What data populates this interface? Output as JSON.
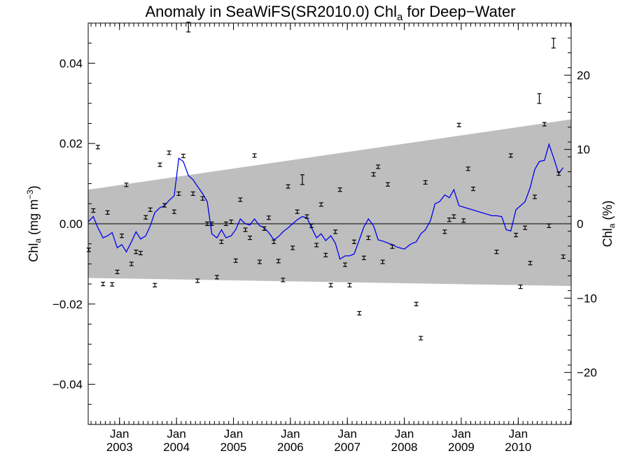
{
  "chart_data": {
    "type": "scatter",
    "title": {
      "prefix": "Anomaly in SeaWiFS(SR2010.0) Chl",
      "sub": "a",
      "suffix": " for Deep−Water"
    },
    "ylabel_left": {
      "base": "Chl",
      "sub": "a",
      "rest": " (mg m",
      "sup": "−3",
      "end": ")"
    },
    "ylabel_right": {
      "base": "Chl",
      "sub": "a",
      "rest": " (%)"
    },
    "xlim": [
      2002.45,
      2010.93
    ],
    "ylim": [
      -0.05,
      0.05
    ],
    "y2lim": [
      -27,
      27
    ],
    "yticks": [
      -0.04,
      -0.02,
      0.0,
      0.02,
      0.04
    ],
    "ytick_labels": [
      "−0.04",
      "−0.02",
      "0.00",
      "0.02",
      "0.04"
    ],
    "y2ticks": [
      -20,
      -10,
      0,
      10,
      20
    ],
    "y2tick_labels": [
      "−20",
      "−10",
      "0",
      "10",
      "20"
    ],
    "xticks": [
      2003,
      2004,
      2005,
      2006,
      2007,
      2008,
      2009,
      2010
    ],
    "xtick_month_label": "Jan",
    "xtick_year_labels": [
      "2003",
      "2004",
      "2005",
      "2006",
      "2007",
      "2008",
      "2009",
      "2010"
    ],
    "zero_line": 0,
    "band": {
      "upper": [
        [
          2002.45,
          0.0085
        ],
        [
          2010.93,
          0.026
        ]
      ],
      "lower": [
        [
          2002.45,
          -0.0135
        ],
        [
          2010.93,
          -0.0155
        ]
      ],
      "color": "#bebebe"
    },
    "line_color": "#0000ee",
    "points": [
      {
        "x": 2002.46,
        "y": -0.0065
      },
      {
        "x": 2002.54,
        "y": 0.0033
      },
      {
        "x": 2002.62,
        "y": 0.0191
      },
      {
        "x": 2002.71,
        "y": -0.015
      },
      {
        "x": 2002.79,
        "y": 0.0028
      },
      {
        "x": 2002.87,
        "y": -0.0151
      },
      {
        "x": 2002.96,
        "y": -0.012
      },
      {
        "x": 2003.04,
        "y": -0.003
      },
      {
        "x": 2003.12,
        "y": 0.0097
      },
      {
        "x": 2003.21,
        "y": -0.01
      },
      {
        "x": 2003.29,
        "y": -0.007
      },
      {
        "x": 2003.37,
        "y": -0.0073
      },
      {
        "x": 2003.46,
        "y": 0.0016
      },
      {
        "x": 2003.54,
        "y": 0.0035
      },
      {
        "x": 2003.62,
        "y": -0.0153
      },
      {
        "x": 2003.71,
        "y": 0.0147
      },
      {
        "x": 2003.79,
        "y": 0.0046
      },
      {
        "x": 2003.87,
        "y": 0.0177
      },
      {
        "x": 2003.96,
        "y": 0.003
      },
      {
        "x": 2004.04,
        "y": 0.0075
      },
      {
        "x": 2004.12,
        "y": 0.0169
      },
      {
        "x": 2004.21,
        "y": 0.049
      },
      {
        "x": 2004.29,
        "y": 0.0075
      },
      {
        "x": 2004.37,
        "y": -0.0142
      },
      {
        "x": 2004.46,
        "y": 0.0063
      },
      {
        "x": 2004.54,
        "y": 0.0
      },
      {
        "x": 2004.62,
        "y": 0.0
      },
      {
        "x": 2004.71,
        "y": -0.0133
      },
      {
        "x": 2004.79,
        "y": -0.0045
      },
      {
        "x": 2004.87,
        "y": 0.0
      },
      {
        "x": 2004.96,
        "y": 0.0005
      },
      {
        "x": 2005.04,
        "y": -0.0092
      },
      {
        "x": 2005.12,
        "y": 0.006
      },
      {
        "x": 2005.21,
        "y": -0.0015
      },
      {
        "x": 2005.29,
        "y": -0.0035
      },
      {
        "x": 2005.37,
        "y": 0.017
      },
      {
        "x": 2005.46,
        "y": -0.0095
      },
      {
        "x": 2005.54,
        "y": -0.0012
      },
      {
        "x": 2005.62,
        "y": 0.0015
      },
      {
        "x": 2005.71,
        "y": -0.0045
      },
      {
        "x": 2005.79,
        "y": -0.0093
      },
      {
        "x": 2005.87,
        "y": -0.014
      },
      {
        "x": 2005.96,
        "y": 0.0093
      },
      {
        "x": 2006.04,
        "y": -0.006
      },
      {
        "x": 2006.12,
        "y": 0.003
      },
      {
        "x": 2006.21,
        "y": 0.011
      },
      {
        "x": 2006.29,
        "y": 0.0018
      },
      {
        "x": 2006.37,
        "y": -0.0005
      },
      {
        "x": 2006.46,
        "y": -0.0053
      },
      {
        "x": 2006.54,
        "y": 0.0048
      },
      {
        "x": 2006.62,
        "y": -0.0078
      },
      {
        "x": 2006.71,
        "y": -0.0153
      },
      {
        "x": 2006.79,
        "y": -0.002
      },
      {
        "x": 2006.87,
        "y": 0.0085
      },
      {
        "x": 2006.96,
        "y": -0.0102
      },
      {
        "x": 2007.04,
        "y": -0.0153
      },
      {
        "x": 2007.12,
        "y": -0.0045
      },
      {
        "x": 2007.21,
        "y": -0.0223
      },
      {
        "x": 2007.29,
        "y": -0.0085
      },
      {
        "x": 2007.37,
        "y": -0.0035
      },
      {
        "x": 2007.46,
        "y": 0.0123
      },
      {
        "x": 2007.54,
        "y": 0.0142
      },
      {
        "x": 2007.62,
        "y": -0.0095
      },
      {
        "x": 2007.71,
        "y": 0.0098
      },
      {
        "x": 2007.79,
        "y": -0.0057
      },
      {
        "x": 2008.21,
        "y": -0.02
      },
      {
        "x": 2008.29,
        "y": -0.0285
      },
      {
        "x": 2008.37,
        "y": 0.0103
      },
      {
        "x": 2008.71,
        "y": -0.002
      },
      {
        "x": 2008.79,
        "y": 0.001
      },
      {
        "x": 2008.87,
        "y": 0.0018
      },
      {
        "x": 2008.96,
        "y": 0.0246
      },
      {
        "x": 2009.04,
        "y": 0.0008
      },
      {
        "x": 2009.12,
        "y": 0.0137
      },
      {
        "x": 2009.21,
        "y": 0.0087
      },
      {
        "x": 2009.62,
        "y": -0.007
      },
      {
        "x": 2009.87,
        "y": 0.017
      },
      {
        "x": 2009.96,
        "y": -0.0028
      },
      {
        "x": 2010.04,
        "y": -0.0157
      },
      {
        "x": 2010.12,
        "y": -0.001
      },
      {
        "x": 2010.21,
        "y": -0.0098
      },
      {
        "x": 2010.29,
        "y": 0.0067
      },
      {
        "x": 2010.37,
        "y": 0.0312
      },
      {
        "x": 2010.46,
        "y": 0.0248
      },
      {
        "x": 2010.54,
        "y": -0.0005
      },
      {
        "x": 2010.62,
        "y": 0.045
      },
      {
        "x": 2010.71,
        "y": 0.0125
      },
      {
        "x": 2010.79,
        "y": -0.0082
      }
    ],
    "smooth_line": [
      [
        2002.45,
        0.0005
      ],
      [
        2002.54,
        0.0018
      ],
      [
        2002.62,
        -0.001
      ],
      [
        2002.71,
        -0.0035
      ],
      [
        2002.79,
        -0.003
      ],
      [
        2002.87,
        -0.0022
      ],
      [
        2002.96,
        -0.006
      ],
      [
        2003.04,
        -0.0052
      ],
      [
        2003.12,
        -0.007
      ],
      [
        2003.21,
        -0.0045
      ],
      [
        2003.29,
        -0.002
      ],
      [
        2003.37,
        -0.0038
      ],
      [
        2003.46,
        -0.003
      ],
      [
        2003.54,
        -0.0005
      ],
      [
        2003.62,
        0.0028
      ],
      [
        2003.71,
        0.004
      ],
      [
        2003.79,
        0.0045
      ],
      [
        2003.87,
        0.0058
      ],
      [
        2003.96,
        0.007
      ],
      [
        2004.04,
        0.0163
      ],
      [
        2004.12,
        0.0155
      ],
      [
        2004.21,
        0.012
      ],
      [
        2004.29,
        0.011
      ],
      [
        2004.37,
        0.0093
      ],
      [
        2004.46,
        0.0075
      ],
      [
        2004.54,
        0.0055
      ],
      [
        2004.62,
        -0.0025
      ],
      [
        2004.71,
        -0.0035
      ],
      [
        2004.79,
        -0.0015
      ],
      [
        2004.87,
        -0.0035
      ],
      [
        2004.96,
        -0.003
      ],
      [
        2005.04,
        -0.0015
      ],
      [
        2005.12,
        0.0012
      ],
      [
        2005.21,
        0.0
      ],
      [
        2005.29,
        -0.0003
      ],
      [
        2005.37,
        0.0012
      ],
      [
        2005.46,
        -0.0005
      ],
      [
        2005.54,
        -0.001
      ],
      [
        2005.62,
        -0.0022
      ],
      [
        2005.71,
        -0.004
      ],
      [
        2005.79,
        -0.0032
      ],
      [
        2005.87,
        -0.002
      ],
      [
        2005.96,
        -0.001
      ],
      [
        2006.04,
        0.0
      ],
      [
        2006.12,
        0.001
      ],
      [
        2006.21,
        0.0018
      ],
      [
        2006.29,
        0.0015
      ],
      [
        2006.37,
        -0.001
      ],
      [
        2006.46,
        -0.0035
      ],
      [
        2006.54,
        -0.0025
      ],
      [
        2006.62,
        -0.0042
      ],
      [
        2006.71,
        -0.003
      ],
      [
        2006.79,
        -0.0048
      ],
      [
        2006.87,
        -0.0088
      ],
      [
        2006.96,
        -0.008
      ],
      [
        2007.04,
        -0.008
      ],
      [
        2007.12,
        -0.0075
      ],
      [
        2007.21,
        -0.004
      ],
      [
        2007.29,
        -0.0008
      ],
      [
        2007.37,
        0.0012
      ],
      [
        2007.46,
        -0.0005
      ],
      [
        2007.54,
        -0.004
      ],
      [
        2007.62,
        -0.0043
      ],
      [
        2007.71,
        -0.0048
      ],
      [
        2007.79,
        -0.0052
      ],
      [
        2007.87,
        -0.0058
      ],
      [
        2008.0,
        -0.0063
      ],
      [
        2008.12,
        -0.005
      ],
      [
        2008.21,
        -0.0045
      ],
      [
        2008.29,
        -0.0025
      ],
      [
        2008.37,
        -0.0015
      ],
      [
        2008.46,
        0.0008
      ],
      [
        2008.54,
        0.005
      ],
      [
        2008.62,
        0.0055
      ],
      [
        2008.71,
        0.0072
      ],
      [
        2008.79,
        0.0065
      ],
      [
        2008.87,
        0.0085
      ],
      [
        2008.96,
        0.0045
      ],
      [
        2009.54,
        0.002
      ],
      [
        2009.62,
        0.002
      ],
      [
        2009.71,
        0.0018
      ],
      [
        2009.79,
        -0.0015
      ],
      [
        2009.87,
        -0.0018
      ],
      [
        2009.96,
        0.0035
      ],
      [
        2010.04,
        0.0045
      ],
      [
        2010.12,
        0.0055
      ],
      [
        2010.21,
        0.009
      ],
      [
        2010.29,
        0.0135
      ],
      [
        2010.37,
        0.0155
      ],
      [
        2010.46,
        0.0158
      ],
      [
        2010.54,
        0.0198
      ],
      [
        2010.62,
        0.0165
      ],
      [
        2010.71,
        0.0125
      ],
      [
        2010.79,
        0.014
      ]
    ]
  }
}
